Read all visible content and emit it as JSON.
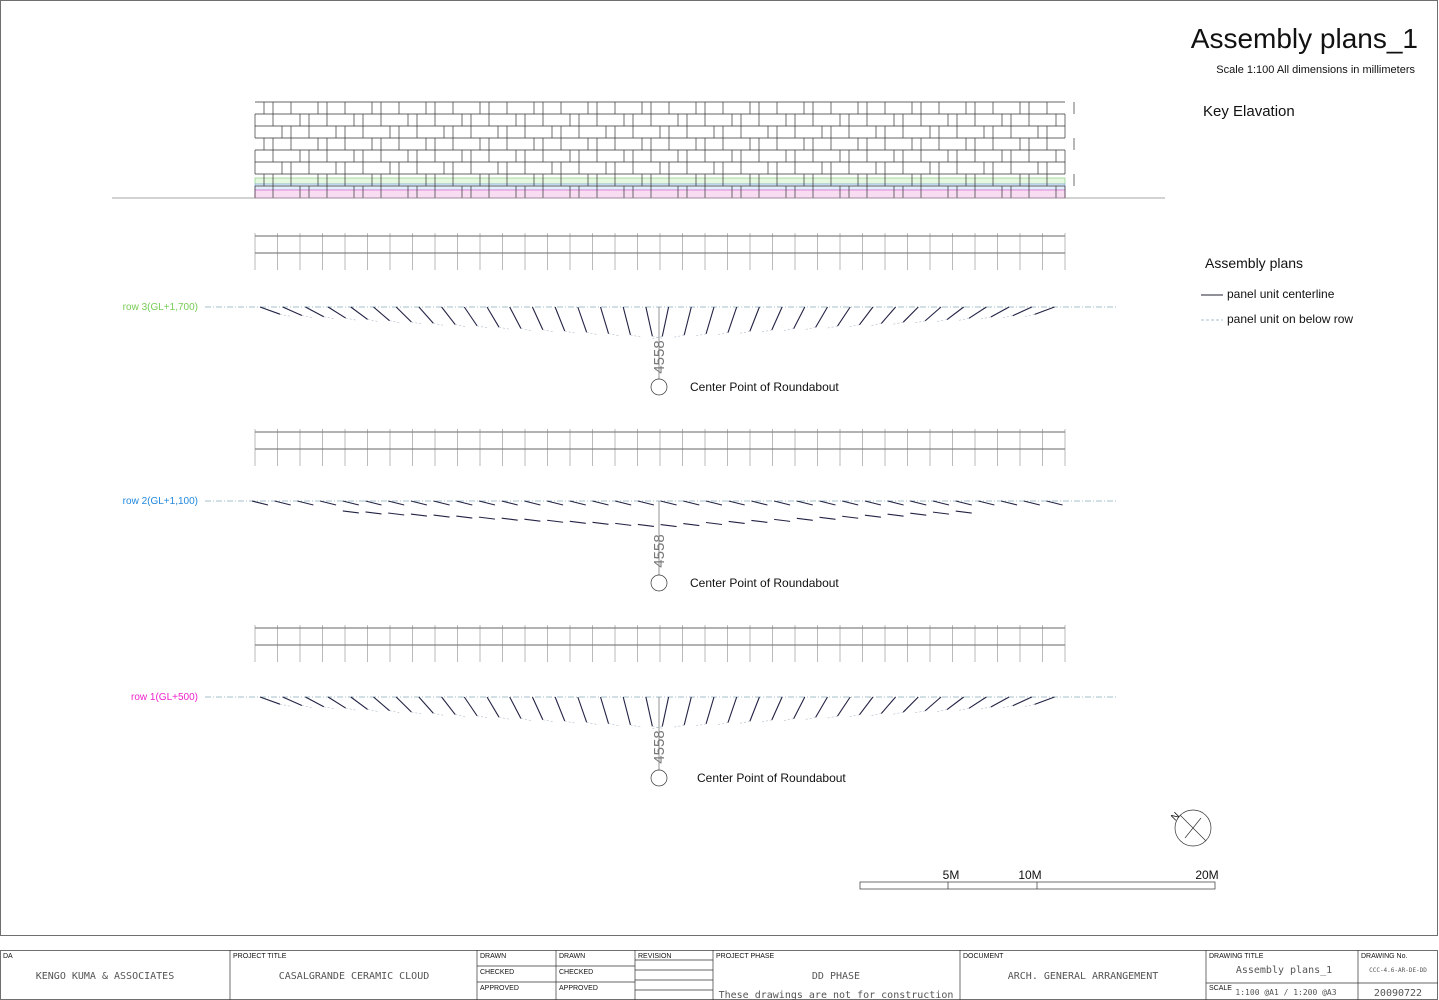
{
  "header": {
    "title": "Assembly plans_1",
    "subtitle": "Scale 1:100 All dimensions in millimeters"
  },
  "key_elevation": {
    "label": "Key Elavation"
  },
  "legend": {
    "title": "Assembly plans",
    "items": [
      "panel unit centerline",
      "panel unit on below row"
    ]
  },
  "plans": [
    {
      "row_label": "row 3(GL+1,700)",
      "dimension": "4558",
      "center_label": "Center Point of Roundabout"
    },
    {
      "row_label": "row 2(GL+1,100)",
      "dimension": "4558",
      "center_label": "Center Point of Roundabout"
    },
    {
      "row_label": "row 1(GL+500)",
      "dimension": "4558",
      "center_label": "Center Point of Roundabout"
    }
  ],
  "north": "N",
  "scale_bar": [
    "5M",
    "10M",
    "20M"
  ],
  "title_block": {
    "da_label": "DA",
    "da": "KENGO KUMA & ASSOCIATES",
    "project_title_label": "PROJECT TITLE",
    "project_title": "CASALGRANDE CERAMIC CLOUD",
    "drawn_1": "DRAWN",
    "checked_1": "CHECKED",
    "approved_1": "APPROVED",
    "drawn_2": "DRAWN",
    "checked_2": "CHECKED",
    "approved_2": "APPROVED",
    "revision": "REVISION",
    "project_phase_label": "PROJECT PHASE",
    "project_phase": "DD PHASE",
    "note": "These drawings are not for construction",
    "document_label": "DOCUMENT",
    "document": "ARCH. GENERAL ARRANGEMENT",
    "drawing_title_label": "DRAWING TITLE",
    "drawing_title": "Assembly plans_1",
    "scale_label": "SCALE",
    "scale": "1:100 @A1 / 1:200 @A3",
    "drawing_no_label": "DRAWING No.",
    "drawing_no": "CCC-4.6-AR-DE-DD",
    "date": "20090722"
  }
}
